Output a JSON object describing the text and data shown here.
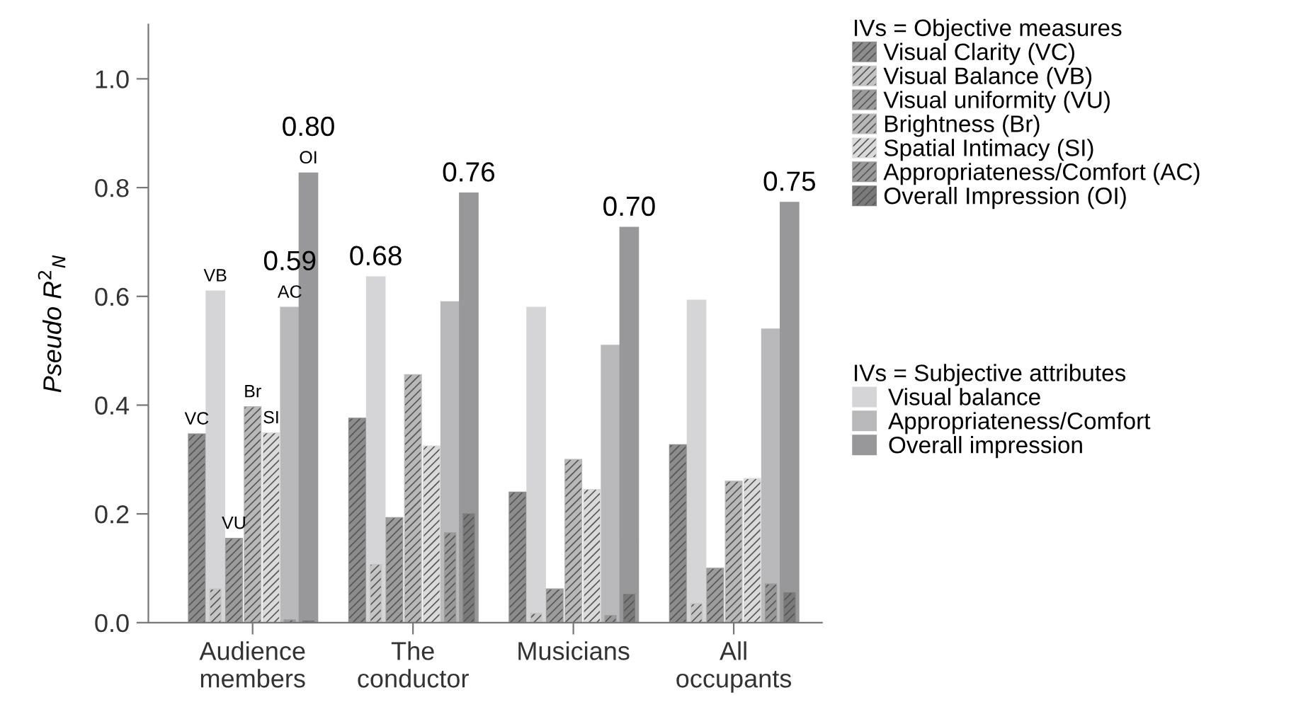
{
  "chart_data": {
    "type": "bar",
    "categories": [
      "Audience\nmembers",
      "The\nconductor",
      "Musicians",
      "All\noccupants"
    ],
    "ylabel": "Pseudo R$^{2}$$_{N}$",
    "legend_title": [
      "IVs = Objective measures",
      "IVs = Subjective attributes"
    ],
    "legend": "right",
    "ylim": [
      0,
      1.1
    ],
    "yticks": [
      {
        "value": 0,
        "label": "0.0"
      },
      {
        "value": 0.2,
        "label": "0.2"
      },
      {
        "value": 0.4,
        "label": "0.4"
      },
      {
        "value": 0.6,
        "label": "0.6"
      },
      {
        "value": 0.8,
        "label": "0.8"
      },
      {
        "value": 1,
        "label": "1.0"
      }
    ],
    "grid": false,
    "annotations": [
      "0.59",
      "0.80",
      "0.68",
      "0.76",
      "0.70",
      "0.75"
    ],
    "series": [
      {
        "name": "Visual Clarity (VC)",
        "color": "#8c8c8c",
        "values": [
          0.347,
          0.376,
          0.24,
          0.327
        ],
        "value_labels": [
          "VC",
          null,
          null,
          null
        ]
      },
      {
        "name": "Visual Balance (VB)",
        "color": "#c4c4c4",
        "values": [
          0.062,
          0.107,
          0.017,
          0.035
        ]
      },
      {
        "name": "Visual uniformity (VU)",
        "color": "#9c9c9c",
        "values": [
          0.155,
          0.193,
          0.062,
          0.1
        ],
        "value_labels": [
          "VU",
          null,
          null,
          null
        ]
      },
      {
        "name": "Brightness (Br)",
        "color": "#b8b8b8",
        "values": [
          0.397,
          0.456,
          0.3,
          0.26
        ],
        "value_labels": [
          "Br",
          null,
          null,
          null
        ]
      },
      {
        "name": "Spatial Intimacy (SI)",
        "color": "#dadada",
        "values": [
          0.349,
          0.325,
          0.245,
          0.265
        ],
        "value_labels": [
          "SI",
          null,
          null,
          null
        ]
      },
      {
        "name": "Appropriateness/Comfort (AC)",
        "color": "#999999",
        "values": [
          0.005,
          0.165,
          0.013,
          0.071
        ]
      },
      {
        "name": "Overall Impression (OI)",
        "color": "#7a7a7a",
        "values": [
          0.003,
          0.2,
          0.052,
          0.055
        ]
      },
      {
        "name": "Visual balance",
        "color": "#d5d5d7",
        "values": [
          0.61,
          0.636,
          0.58,
          0.593
        ],
        "value_labels": [
          "VB",
          null,
          null,
          null
        ]
      },
      {
        "name": "Appropriateness/Comfort",
        "color": "#b9b9bb",
        "values": [
          0.58,
          0.59,
          0.51,
          0.54
        ],
        "value_labels": [
          "AC",
          null,
          null,
          null
        ]
      },
      {
        "name": "Overall impression",
        "color": "#98989b",
        "values": [
          0.827,
          0.79,
          0.727,
          0.773
        ],
        "value_labels": [
          "OI",
          null,
          null,
          null
        ]
      }
    ]
  }
}
